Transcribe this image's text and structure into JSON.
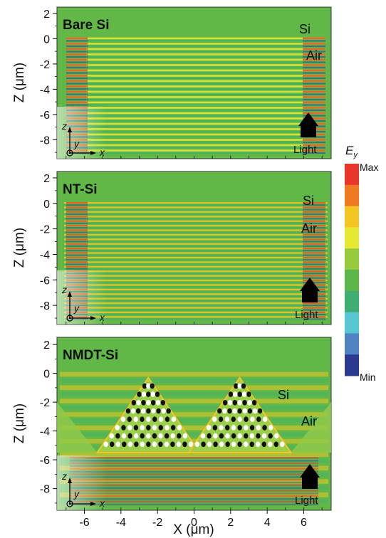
{
  "colors": {
    "background_field": "#62b846",
    "colorbar": [
      "#e8362a",
      "#f07a22",
      "#f5c623",
      "#e6e934",
      "#97c93d",
      "#5db64a",
      "#3fae72",
      "#55c6d2",
      "#4f83c4",
      "#2c3b8f"
    ]
  },
  "colorbar": {
    "title": "E",
    "title_sub": "y",
    "max_label": "Max",
    "min_label": "Min"
  },
  "axes": {
    "y_title_prefix": "Z (",
    "y_title_mu": "μ",
    "y_title_suffix": "m)",
    "x_title_prefix": "X (",
    "x_title_mu": "μ",
    "x_title_suffix": "m)",
    "y_ticks": [
      "2",
      "0",
      "-2",
      "-4",
      "-6",
      "-8"
    ],
    "y_tick_values": [
      2,
      0,
      -2,
      -4,
      -6,
      -8
    ],
    "x_ticks": [
      "-6",
      "-4",
      "-2",
      "0",
      "2",
      "4",
      "6"
    ],
    "x_tick_values": [
      -6,
      -4,
      -2,
      0,
      2,
      4,
      6
    ],
    "x_range": [
      -7.5,
      7.5
    ],
    "z_range": [
      -9.5,
      2.5
    ],
    "inset_z": "z",
    "inset_y": "y",
    "inset_x": "x"
  },
  "panels": [
    {
      "title": "Bare Si",
      "label_si": "Si",
      "label_air": "Air",
      "label_light": "Light"
    },
    {
      "title": "NT-Si",
      "label_si": "Si",
      "label_air": "Air",
      "label_light": "Light"
    },
    {
      "title": "NMDT-Si",
      "label_si": "Si",
      "label_air": "Air",
      "label_light": "Light"
    }
  ]
}
